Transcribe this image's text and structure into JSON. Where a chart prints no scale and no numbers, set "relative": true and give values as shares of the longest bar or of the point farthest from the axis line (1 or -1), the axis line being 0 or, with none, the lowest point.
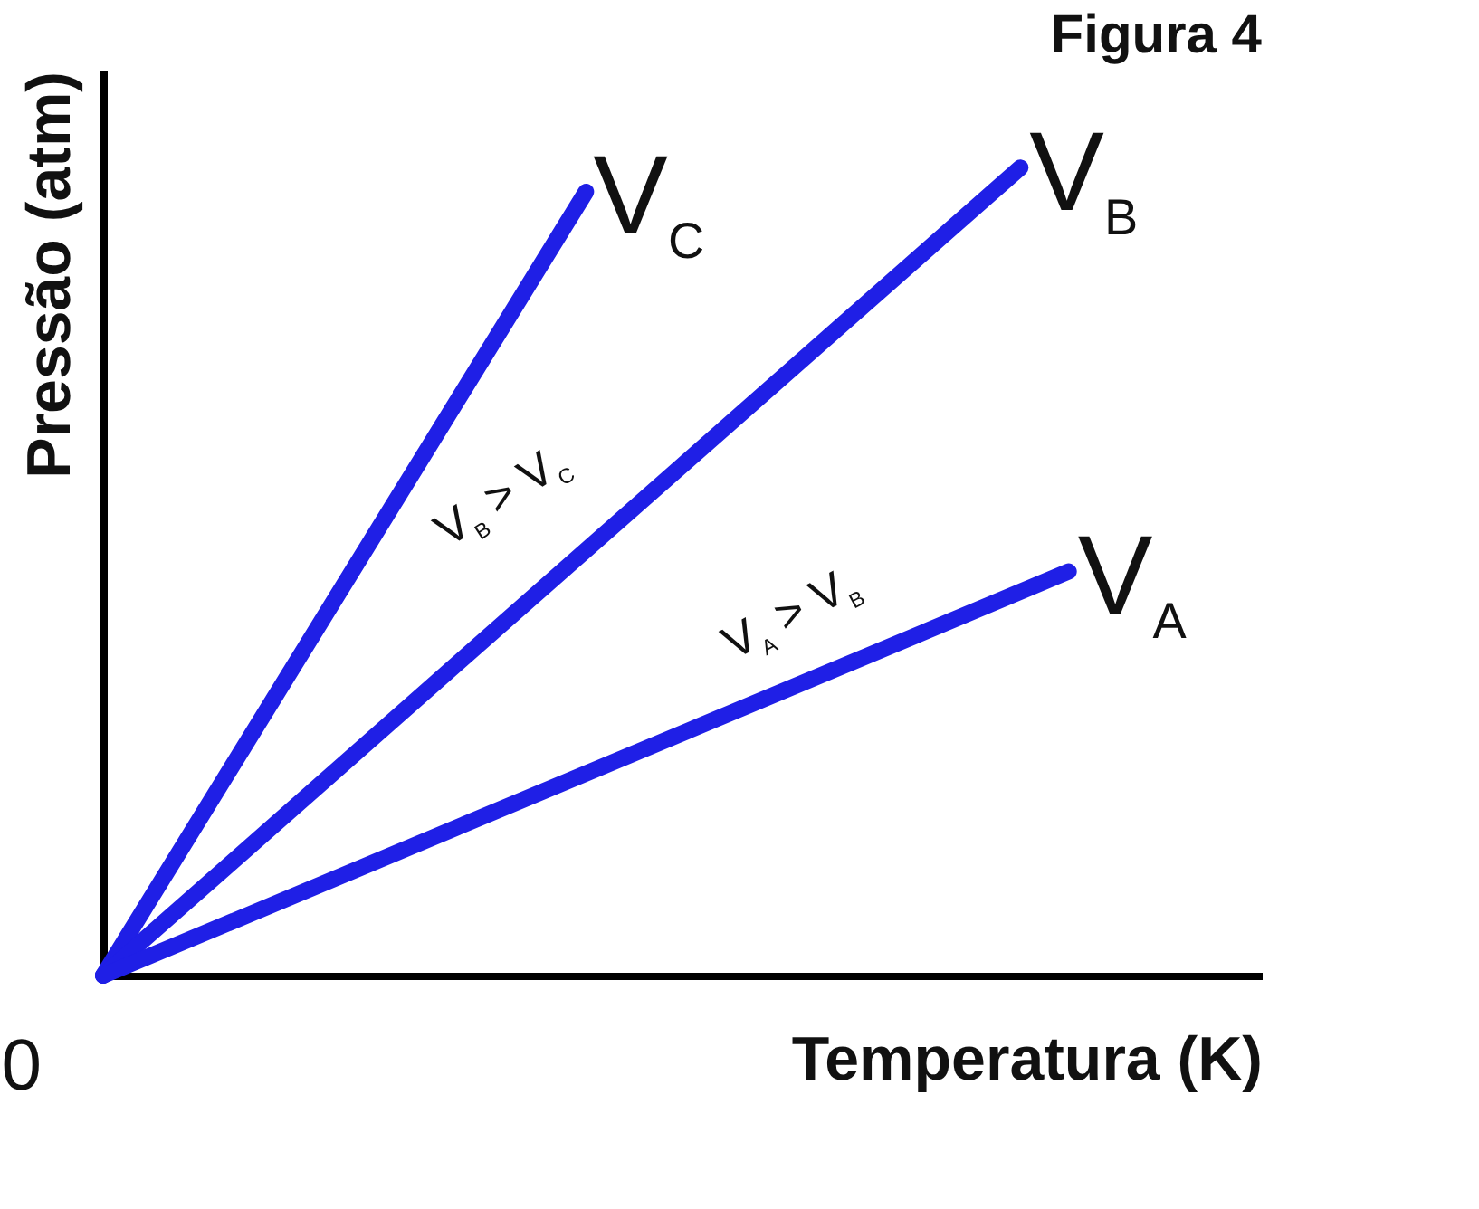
{
  "chart_data": {
    "type": "line",
    "title": "Figura 4",
    "xlabel": "Temperatura (K)",
    "ylabel": "Pressão (atm)",
    "relative": true,
    "grid": false,
    "legend": false,
    "line_style": "solid",
    "categories": [
      null,
      null,
      null,
      null,
      null,
      null,
      null,
      null,
      null,
      null,
      null,
      null,
      null,
      null,
      null,
      null,
      null,
      null,
      null,
      null,
      null
    ],
    "series": [
      {
        "name": "V$_{C}$",
        "color": "#1f1fe6",
        "values": [
          0,
          null,
          null,
          null,
          null,
          null,
          null,
          null,
          null,
          null,
          0.97,
          null,
          null,
          null,
          null,
          null,
          null,
          null,
          null,
          null,
          null
        ]
      },
      {
        "name": "V$_{B}$",
        "color": "#1f1fe6",
        "values": [
          0,
          null,
          null,
          null,
          null,
          null,
          null,
          null,
          null,
          null,
          null,
          null,
          null,
          null,
          null,
          null,
          null,
          null,
          null,
          1,
          null
        ]
      },
      {
        "name": "V$_{A}$",
        "color": "#1f1fe6",
        "values": [
          0,
          null,
          null,
          null,
          null,
          null,
          null,
          null,
          null,
          null,
          null,
          null,
          null,
          null,
          null,
          null,
          null,
          null,
          null,
          null,
          0.5
        ]
      }
    ],
    "annotations": [
      "0",
      "V$_{B}$ > V$_{C}$",
      "V$_{A}$ > V$_{B}$"
    ]
  }
}
